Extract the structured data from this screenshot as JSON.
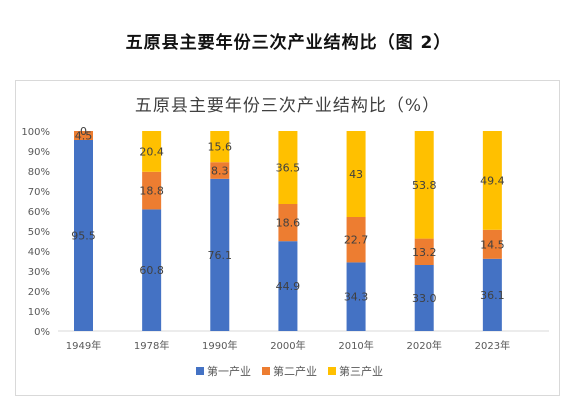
{
  "page": {
    "title": "五原县主要年份三次产业结构比（图 2）"
  },
  "chart_data": {
    "type": "bar",
    "stacked": true,
    "percent": true,
    "title": "五原县主要年份三次产业结构比（%）",
    "categories": [
      "1949年",
      "1978年",
      "1990年",
      "2000年",
      "2010年",
      "2020年",
      "2023年"
    ],
    "series": [
      {
        "name": "第一产业",
        "color": "#4472C4",
        "values": [
          95.5,
          60.8,
          76.1,
          44.9,
          34.3,
          33.0,
          36.1
        ],
        "labels": [
          "95.5",
          "60.8",
          "76.1",
          "44.9",
          "34.3",
          "33.0",
          "36.1"
        ]
      },
      {
        "name": "第二产业",
        "color": "#ED7D31",
        "values": [
          4.5,
          18.8,
          8.3,
          18.6,
          22.7,
          13.2,
          14.5
        ],
        "labels": [
          "4.5",
          "18.8",
          "8.3",
          "18.6",
          "22.7",
          "13.2",
          "14.5"
        ]
      },
      {
        "name": "第三产业",
        "color": "#FFC000",
        "values": [
          0,
          20.4,
          15.6,
          36.5,
          43,
          53.8,
          49.4
        ],
        "labels": [
          "0",
          "20.4",
          "15.6",
          "36.5",
          "43",
          "53.8",
          "49.4"
        ]
      }
    ],
    "y_ticks": [
      "0%",
      "10%",
      "20%",
      "30%",
      "40%",
      "50%",
      "60%",
      "70%",
      "80%",
      "90%",
      "100%"
    ],
    "ylim": [
      0,
      100
    ],
    "grid": false,
    "legend_position": "bottom"
  }
}
